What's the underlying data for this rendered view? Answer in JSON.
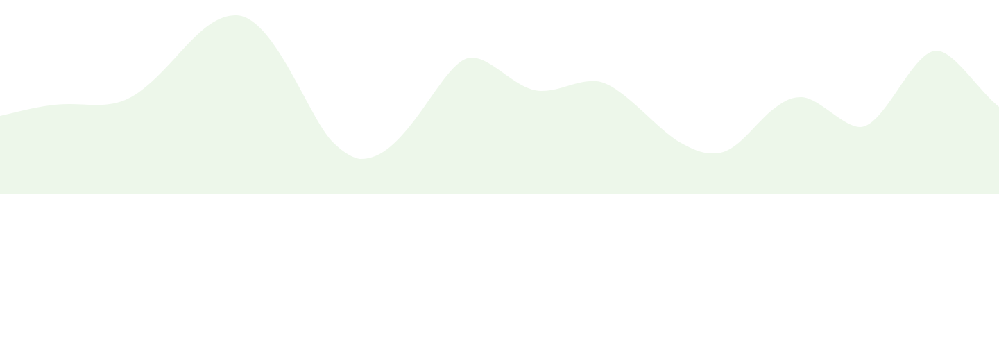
{
  "background": {
    "color": "#ffffff"
  },
  "wave": {
    "fill_color": "#edf7ea",
    "shape": "organic-wave-banner"
  }
}
